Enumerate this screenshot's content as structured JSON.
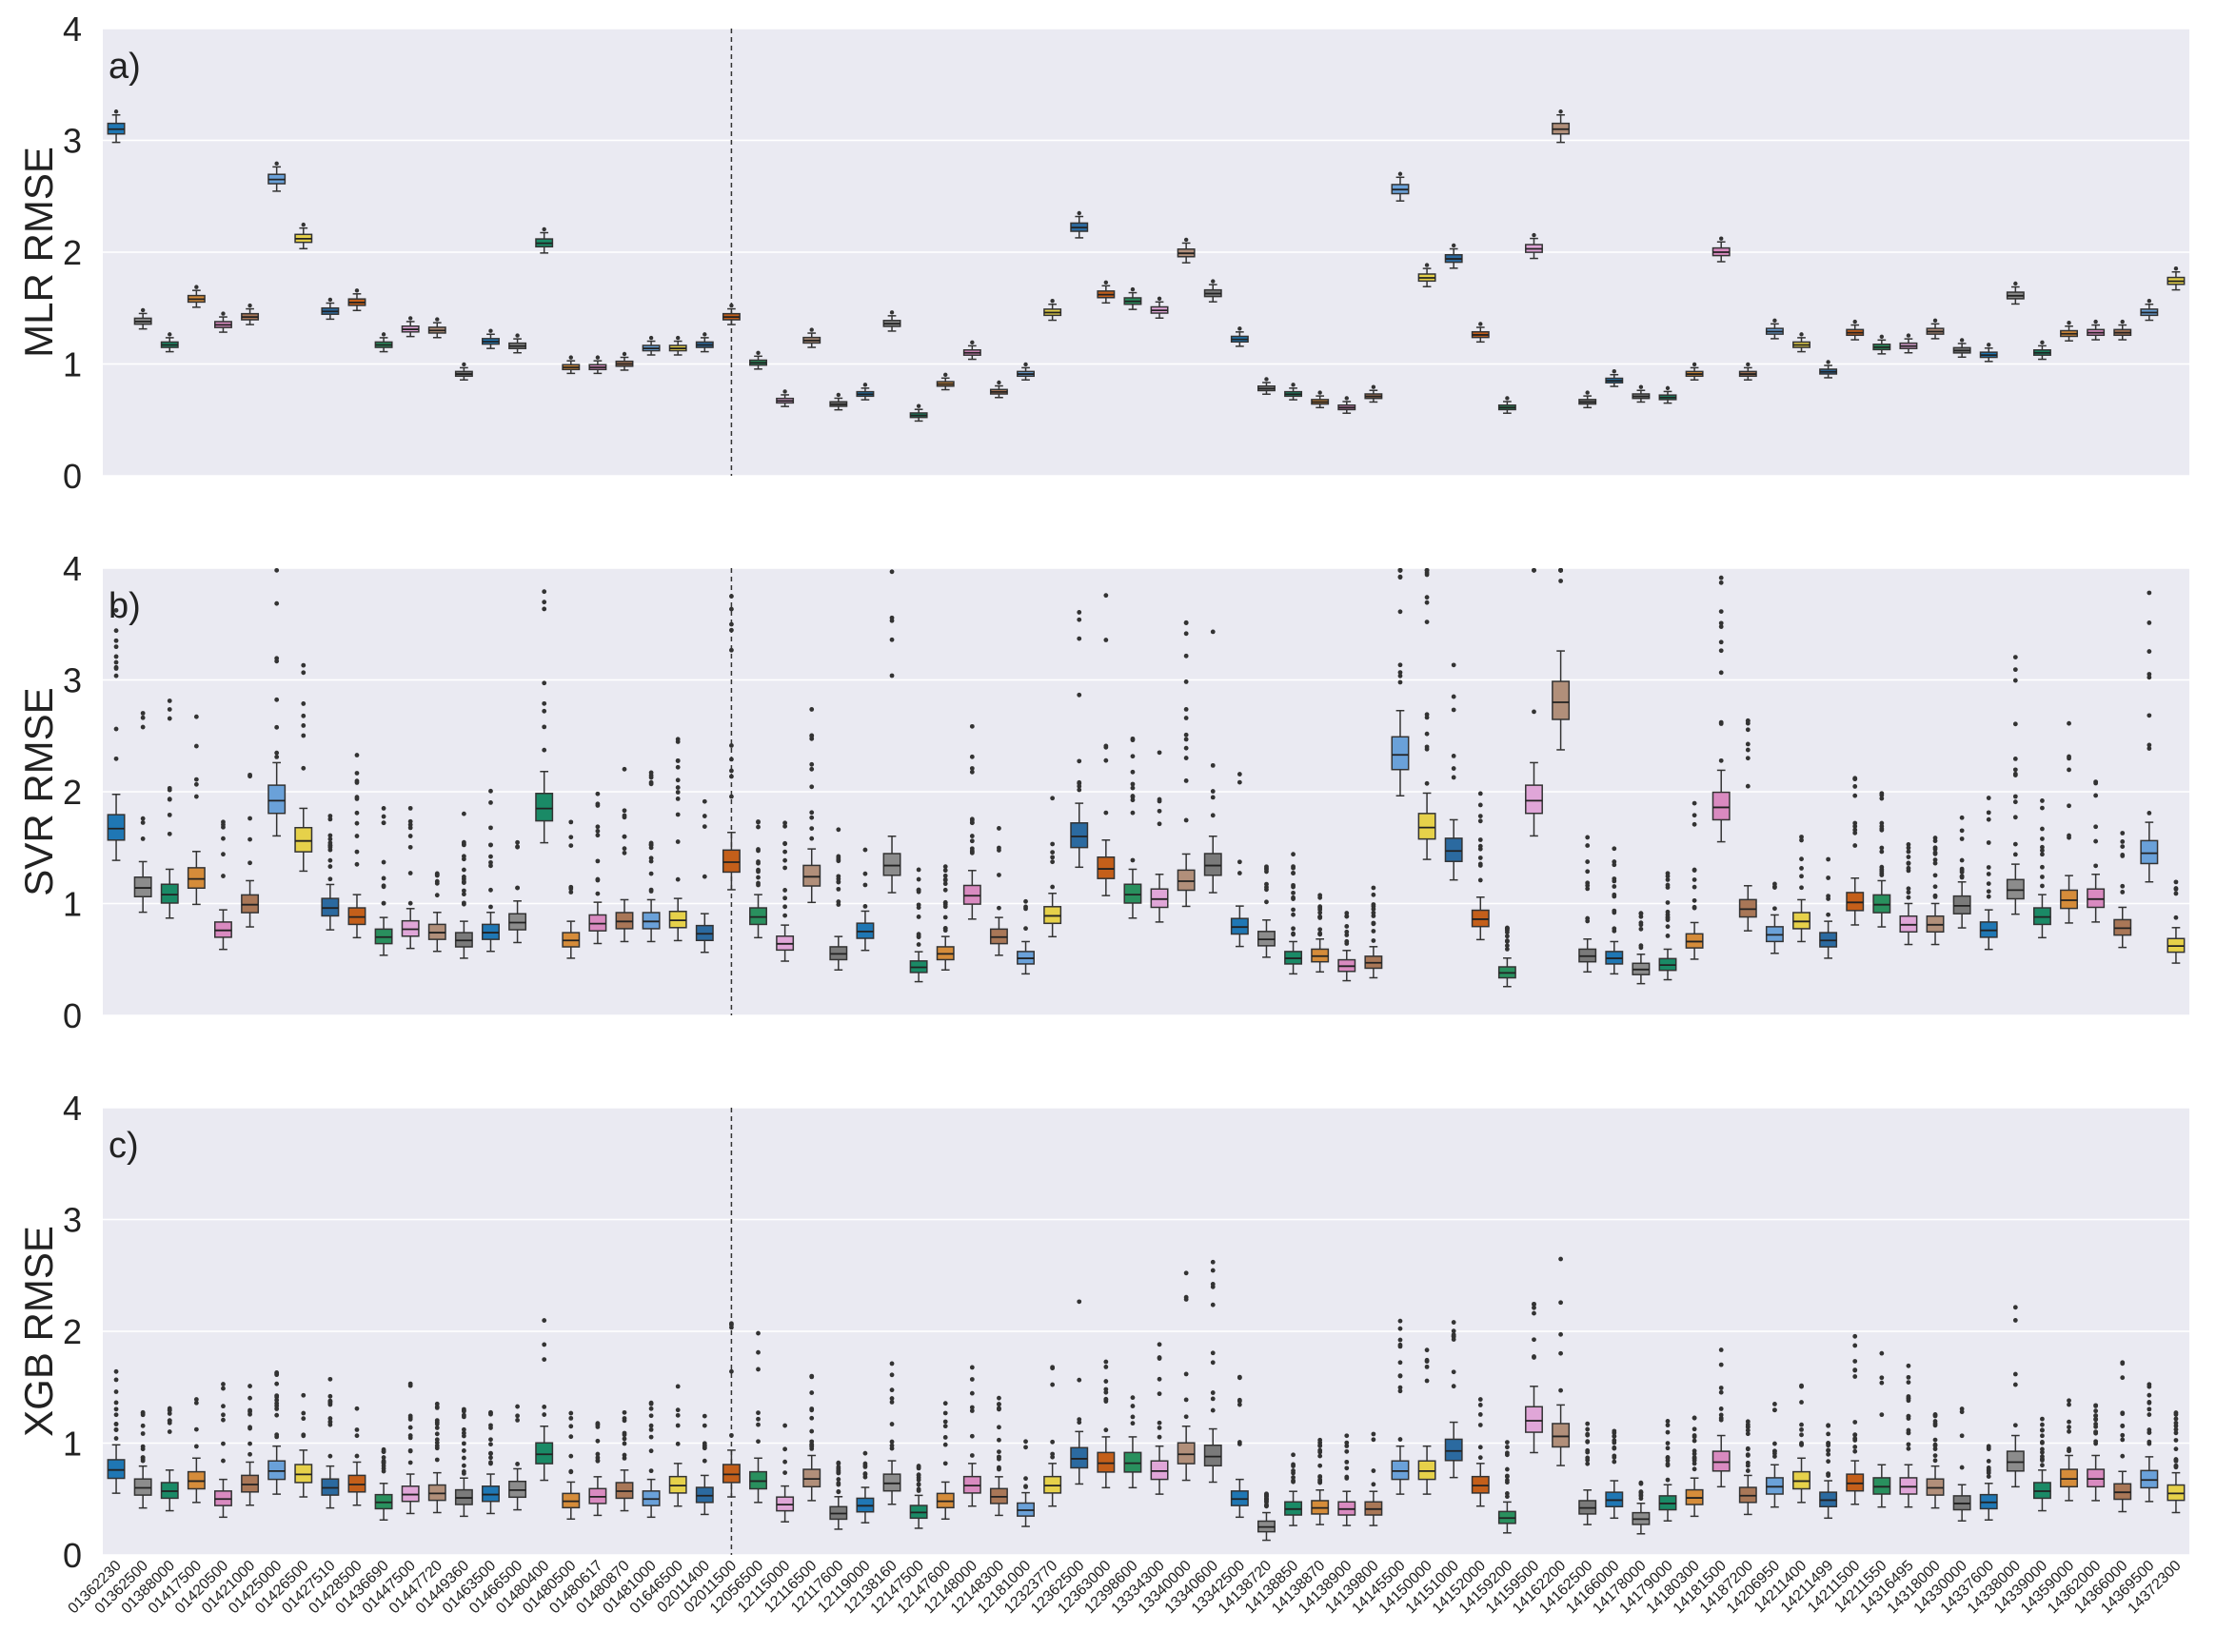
{
  "chart_data": {
    "type": "boxplot",
    "ylim": [
      0,
      4
    ],
    "yticks": [
      0,
      1,
      2,
      3,
      4
    ],
    "separator_after_index": 23,
    "categories": [
      "01362230",
      "01362500",
      "01388000",
      "01417500",
      "01420500",
      "01421000",
      "01425000",
      "01426500",
      "01427510",
      "01428500",
      "01436690",
      "01447500",
      "01447720",
      "01449360",
      "01463500",
      "01466500",
      "01480400",
      "01480500",
      "01480617",
      "01480870",
      "01481000",
      "01646500",
      "02011400",
      "02011500",
      "12056500",
      "12115000",
      "12116500",
      "12117600",
      "12119000",
      "12138160",
      "12147500",
      "12147600",
      "12148000",
      "12148300",
      "12181000",
      "12323770",
      "12362500",
      "12363000",
      "12398600",
      "13334300",
      "13340000",
      "13340600",
      "13342500",
      "14138720",
      "14138850",
      "14138870",
      "14138900",
      "14139800",
      "14145500",
      "14150000",
      "14151000",
      "14152000",
      "14159200",
      "14159500",
      "14162200",
      "14162500",
      "14166000",
      "14178000",
      "14179000",
      "14180300",
      "14181500",
      "14187200",
      "14206950",
      "14211400",
      "14211499",
      "14211500",
      "14211550",
      "14316495",
      "14318000",
      "14330000",
      "14337600",
      "14338000",
      "14339000",
      "14359000",
      "14362000",
      "14366000",
      "14369500",
      "14372300"
    ],
    "panels": [
      {
        "label": "a)",
        "ylabel": "MLR RMSE",
        "medians": [
          3.1,
          1.38,
          1.17,
          1.58,
          1.35,
          1.42,
          2.65,
          2.12,
          1.47,
          1.55,
          1.17,
          1.31,
          1.3,
          0.91,
          1.2,
          1.16,
          2.08,
          0.97,
          0.97,
          1.0,
          1.14,
          1.14,
          1.17,
          1.42,
          1.01,
          0.67,
          1.21,
          0.64,
          0.73,
          1.36,
          0.54,
          0.82,
          1.1,
          0.75,
          0.91,
          1.46,
          2.22,
          1.62,
          1.56,
          1.48,
          1.99,
          1.63,
          1.22,
          0.78,
          0.73,
          0.66,
          0.61,
          0.71,
          2.56,
          1.77,
          1.94,
          1.26,
          0.61,
          2.03,
          3.1,
          0.66,
          0.85,
          0.71,
          0.7,
          0.91,
          2.0,
          0.91,
          1.29,
          1.17,
          0.93,
          1.28,
          1.15,
          1.16,
          1.29,
          1.12,
          1.08,
          1.61,
          1.1,
          1.27,
          1.28,
          1.28,
          1.46,
          1.74
        ]
      },
      {
        "label": "b)",
        "ylabel": "SVR RMSE",
        "medians": [
          1.67,
          1.14,
          1.08,
          1.22,
          0.76,
          0.99,
          1.92,
          1.56,
          0.96,
          0.88,
          0.7,
          0.77,
          0.74,
          0.67,
          0.74,
          0.83,
          1.85,
          0.67,
          0.82,
          0.84,
          0.84,
          0.85,
          0.73,
          1.37,
          0.88,
          0.64,
          1.24,
          0.55,
          0.75,
          1.34,
          0.43,
          0.55,
          1.07,
          0.7,
          0.51,
          0.89,
          1.6,
          1.31,
          1.08,
          1.04,
          1.2,
          1.34,
          0.79,
          0.68,
          0.51,
          0.53,
          0.44,
          0.47,
          2.33,
          1.68,
          1.47,
          0.86,
          0.38,
          1.92,
          2.8,
          0.53,
          0.51,
          0.41,
          0.45,
          0.66,
          1.86,
          0.95,
          0.72,
          0.84,
          0.67,
          1.01,
          0.99,
          0.81,
          0.81,
          0.98,
          0.76,
          1.12,
          0.88,
          1.03,
          1.04,
          0.78,
          1.45,
          0.62
        ]
      },
      {
        "label": "c)",
        "ylabel": "XGB RMSE",
        "medians": [
          0.76,
          0.6,
          0.57,
          0.66,
          0.5,
          0.63,
          0.75,
          0.72,
          0.6,
          0.63,
          0.47,
          0.54,
          0.55,
          0.51,
          0.54,
          0.58,
          0.9,
          0.48,
          0.52,
          0.57,
          0.5,
          0.62,
          0.53,
          0.72,
          0.66,
          0.45,
          0.68,
          0.37,
          0.44,
          0.64,
          0.38,
          0.48,
          0.62,
          0.52,
          0.4,
          0.62,
          0.86,
          0.82,
          0.82,
          0.75,
          0.9,
          0.88,
          0.5,
          0.25,
          0.41,
          0.42,
          0.41,
          0.41,
          0.75,
          0.75,
          0.93,
          0.62,
          0.33,
          1.2,
          1.06,
          0.42,
          0.49,
          0.32,
          0.46,
          0.51,
          0.83,
          0.53,
          0.61,
          0.66,
          0.49,
          0.64,
          0.61,
          0.61,
          0.6,
          0.46,
          0.47,
          0.83,
          0.57,
          0.68,
          0.68,
          0.56,
          0.67,
          0.55
        ]
      }
    ]
  }
}
